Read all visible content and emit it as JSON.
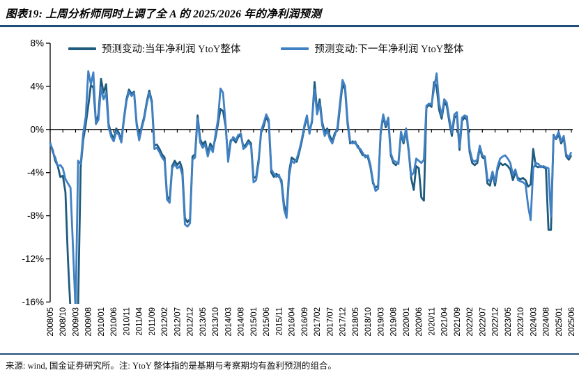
{
  "title": "图表19: 上周分析师同时上调了全 A 的 2025/2026 年的净利润预测",
  "accent_color": "#1F4E79",
  "footer": "来源: wind, 国金证券研究所。注: YtoY 整体指的是基期与考察期均有盈利预测的组合。",
  "chart_data": {
    "type": "line",
    "title": "",
    "xlabel": "",
    "ylabel": "",
    "ylim": [
      -16,
      8
    ],
    "grid": false,
    "legend_position": "top",
    "y_ticks": {
      "values": [
        8,
        4,
        0,
        -4,
        -8,
        -12,
        -16
      ],
      "labels": [
        "8%",
        "4%",
        "0%",
        "-4%",
        "-8%",
        "-12%",
        "-16%"
      ]
    },
    "x_label_every": 5,
    "x_labels": [
      "2008/05",
      "2008/10",
      "2009/03",
      "2009/08",
      "2010/01",
      "2010/06",
      "2010/11",
      "2011/04",
      "2011/09",
      "2012/02",
      "2012/07",
      "2012/12",
      "2013/05",
      "2013/10",
      "2014/03",
      "2014/08",
      "2015/01",
      "2015/06",
      "2015/11",
      "2016/04",
      "2016/09",
      "2017/02",
      "2017/07",
      "2017/12",
      "2018/05",
      "2018/10",
      "2019/03",
      "2019/08",
      "2020/01",
      "2020/06",
      "2020/11",
      "2021/04",
      "2021/09",
      "2022/02",
      "2022/07",
      "2022/12",
      "2023/05",
      "2023/10",
      "2024/03",
      "2024/08",
      "2025/01",
      "2025/06"
    ],
    "series": [
      {
        "name": "预测变动:当年净利润 YtoY整体",
        "color": "#1E5B7E",
        "values": [
          -1.3,
          -1.9,
          -2.9,
          -3.4,
          -4.4,
          -4.3,
          -5.8,
          -12.0,
          -16.8,
          -17.0,
          -17.0,
          -16.5,
          -3.5,
          -1.0,
          0.5,
          2.2,
          4.1,
          3.9,
          0.6,
          1.4,
          4.7,
          3.4,
          4.2,
          0.5,
          -0.4,
          -0.9,
          0.1,
          -0.3,
          -1.0,
          1.0,
          2.8,
          3.7,
          3.3,
          3.5,
          0.6,
          -0.8,
          0.3,
          1.2,
          2.6,
          3.6,
          2.6,
          -1.5,
          -1.4,
          -1.8,
          -2.3,
          -2.6,
          -6.2,
          -6.5,
          -3.4,
          -2.9,
          -3.3,
          -3.0,
          -3.7,
          -8.2,
          -8.6,
          -8.3,
          -2.5,
          -2.3,
          1.3,
          -0.9,
          -1.4,
          -1.1,
          -2.2,
          -1.3,
          -1.8,
          -0.8,
          0.5,
          1.9,
          1.7,
          0.3,
          -2.7,
          -1.0,
          -0.9,
          -1.2,
          -0.7,
          -0.5,
          -1.6,
          -1.4,
          -1.0,
          -1.3,
          -4.5,
          -4.4,
          -2.8,
          -0.3,
          0.3,
          1.2,
          0.6,
          -4.0,
          -4.4,
          -4.1,
          -4.4,
          -4.7,
          -7.0,
          -7.8,
          -3.9,
          -2.6,
          -2.8,
          -3.0,
          -2.1,
          -1.1,
          0.2,
          1.1,
          -0.2,
          0.7,
          4.4,
          1.7,
          2.8,
          0.7,
          -0.3,
          0.1,
          -0.6,
          -1.1,
          -0.3,
          -0.1,
          2.1,
          4.2,
          3.7,
          0.5,
          -1.3,
          -1.1,
          -1.3,
          -1.5,
          -2.0,
          -2.4,
          -2.4,
          -2.6,
          -3.5,
          -5.0,
          -5.4,
          -5.2,
          -0.4,
          1.2,
          0.2,
          0.9,
          -2.4,
          -3.1,
          -3.3,
          -3.0,
          -0.4,
          -1.3,
          -0.1,
          -2.0,
          -4.5,
          -5.6,
          -3.4,
          -3.6,
          -6.3,
          -6.6,
          2.0,
          2.3,
          2.1,
          4.4,
          4.0,
          1.8,
          1.0,
          2.5,
          2.2,
          0.7,
          -0.6,
          1.1,
          1.3,
          -1.9,
          0.8,
          1.1,
          0.9,
          -2.1,
          -3.1,
          -3.3,
          -3.1,
          -1.7,
          -2.6,
          -2.7,
          -5.0,
          -5.2,
          -4.1,
          -5.2,
          -3.7,
          -3.1,
          -3.3,
          -3.2,
          -3.4,
          -3.7,
          -4.7,
          -4.0,
          -4.5,
          -4.6,
          -4.5,
          -4.7,
          -5.3,
          -5.1,
          -1.8,
          -3.4,
          -3.5,
          -3.4,
          -3.5,
          -3.6,
          -9.3,
          -9.3,
          -0.5,
          -0.9,
          -0.5,
          -1.3,
          -0.8,
          -2.5,
          -2.8,
          -2.4
        ]
      },
      {
        "name": "预测变动:下一年净利润 YtoY整体",
        "color": "#4181C3",
        "values": [
          -1.2,
          -2.1,
          -2.6,
          -3.4,
          -3.3,
          -3.6,
          -4.6,
          -5.0,
          -5.4,
          -11.0,
          -16.9,
          -2.9,
          -3.2,
          -0.4,
          1.2,
          5.4,
          4.2,
          5.3,
          0.5,
          0.9,
          3.9,
          2.8,
          3.4,
          0.2,
          -0.7,
          -1.1,
          -0.2,
          -0.5,
          -1.2,
          0.8,
          2.6,
          3.5,
          3.1,
          3.4,
          0.4,
          -1.0,
          0.1,
          1.0,
          2.4,
          3.4,
          2.4,
          -1.8,
          -1.7,
          -2.1,
          -2.6,
          -2.9,
          -6.5,
          -6.8,
          -3.6,
          -3.2,
          -3.6,
          -3.4,
          -4.2,
          -8.8,
          -9.0,
          -8.7,
          -2.8,
          -2.6,
          1.0,
          -1.2,
          -1.7,
          -1.4,
          -2.5,
          -1.6,
          -2.1,
          -0.5,
          0.9,
          3.8,
          3.4,
          0.5,
          -3.0,
          -1.2,
          -0.7,
          -1.0,
          -0.5,
          -0.4,
          -1.8,
          -1.6,
          -1.2,
          -1.5,
          -4.9,
          -4.7,
          -3.1,
          -0.1,
          0.6,
          1.4,
          0.9,
          -3.7,
          -4.1,
          -4.4,
          -4.2,
          -5.0,
          -7.4,
          -8.2,
          -4.3,
          -2.9,
          -3.1,
          -2.7,
          -1.9,
          -0.9,
          0.4,
          1.3,
          -0.4,
          0.9,
          3.7,
          1.4,
          2.4,
          0.4,
          -0.6,
          -0.1,
          -0.9,
          -1.3,
          -0.5,
          0.2,
          2.5,
          4.6,
          4.0,
          0.8,
          -1.1,
          -1.3,
          -1.1,
          -1.7,
          -1.8,
          -2.2,
          -2.6,
          -2.4,
          -3.3,
          -4.8,
          -5.7,
          -5.5,
          -0.2,
          1.4,
          0.4,
          1.1,
          -2.2,
          -2.9,
          -3.0,
          -3.2,
          -0.2,
          -1.1,
          0.1,
          -1.8,
          -4.3,
          -4.0,
          -2.7,
          -2.9,
          -3.1,
          -2.8,
          2.2,
          2.4,
          2.3,
          3.8,
          5.2,
          2.4,
          1.3,
          2.8,
          2.5,
          1.0,
          -0.3,
          1.4,
          1.6,
          -1.6,
          1.1,
          1.3,
          1.2,
          -1.8,
          -2.8,
          -3.0,
          -2.8,
          -1.5,
          -2.4,
          -2.5,
          -4.6,
          -4.8,
          -3.9,
          -4.9,
          -3.4,
          -2.7,
          -2.5,
          -2.4,
          -2.7,
          -3.1,
          -4.2,
          -3.7,
          -4.7,
          -4.8,
          -4.9,
          -5.1,
          -7.1,
          -8.4,
          -3.6,
          -3.1,
          -3.2,
          -3.5,
          -3.4,
          -3.5,
          -3.6,
          -8.1,
          -0.6,
          -0.8,
          -0.2,
          -1.1,
          -0.6,
          -2.3,
          -2.6,
          -2.1
        ]
      }
    ]
  },
  "legend": {
    "item1": "预测变动:当年净利润 YtoY整体",
    "item2": "预测变动:下一年净利润 YtoY整体"
  }
}
